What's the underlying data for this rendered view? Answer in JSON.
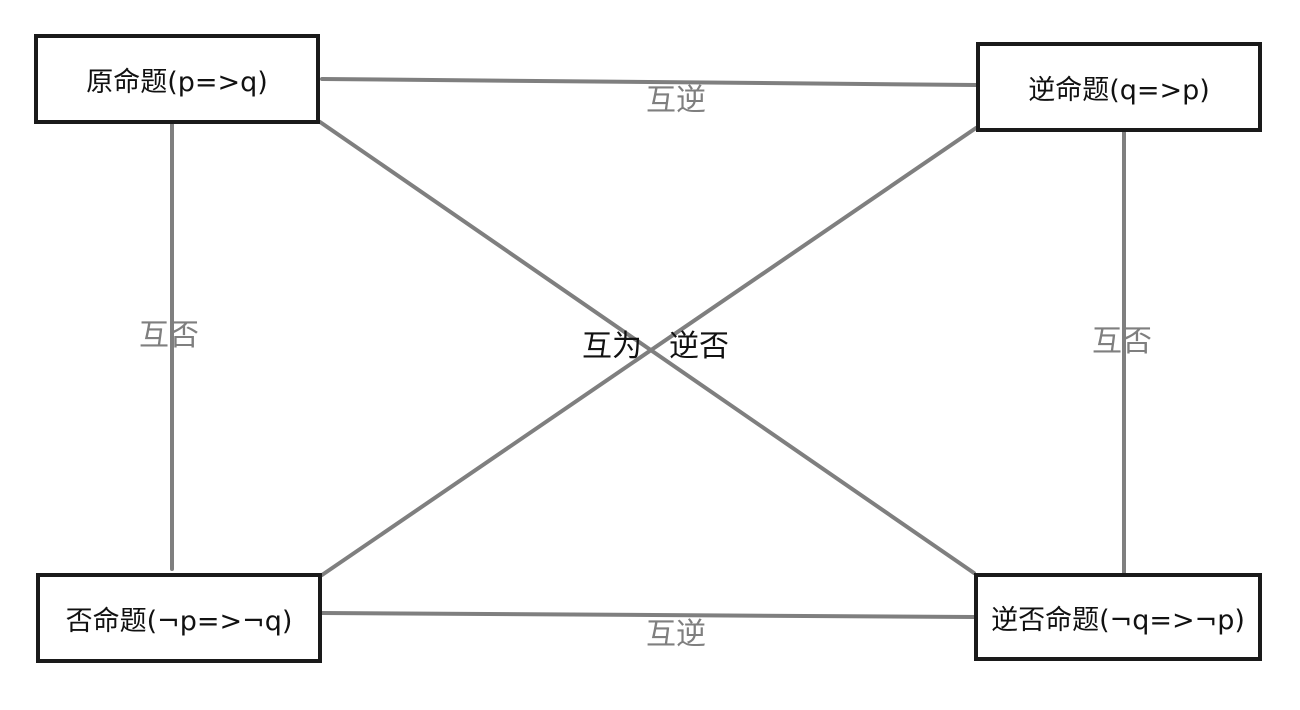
{
  "propositions": {
    "original": "原命题(p=>q)",
    "converse": "逆命题(q=>p)",
    "inverse": "否命题(¬p=>¬q)",
    "contrapositive": "逆否命题(¬q=>¬p)"
  },
  "relations": {
    "top": "互逆",
    "bottom": "互逆",
    "left": "互否",
    "right": "互否",
    "diagonal_part1": "互为",
    "diagonal_part2": "逆否"
  },
  "colors": {
    "connector": "#7f7f7f",
    "box_border": "#1a1a1a",
    "text": "#111111",
    "relation_text": "#7f7f7f"
  }
}
